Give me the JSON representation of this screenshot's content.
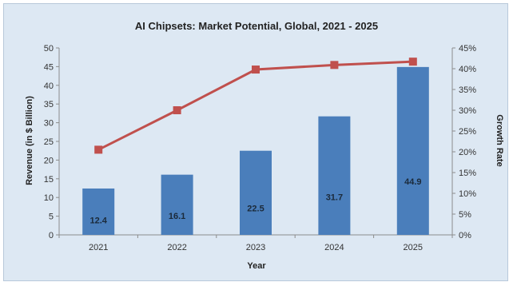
{
  "chart_data": {
    "type": "bar+line",
    "title": "AI Chipsets: Market Potential, Global, 2021 - 2025",
    "xlabel": "Year",
    "ylabel_left": "Revenue (in $ Billion)",
    "ylabel_right": "Growth Rate",
    "categories": [
      "2021",
      "2022",
      "2023",
      "2024",
      "2025"
    ],
    "bar_series": {
      "color": "#4a7ebb",
      "values": [
        12.4,
        16.1,
        22.5,
        31.7,
        44.9
      ],
      "labels": [
        "12.4",
        "16.1",
        "22.5",
        "31.7",
        "44.9"
      ]
    },
    "line_series": {
      "color": "#c0504d",
      "values": [
        20.5,
        30.0,
        39.8,
        40.9,
        41.7
      ]
    },
    "ylim_left": [
      0,
      50
    ],
    "yticks_left": [
      "0",
      "5",
      "10",
      "15",
      "20",
      "25",
      "30",
      "35",
      "40",
      "45",
      "50"
    ],
    "ylim_right": [
      0,
      45
    ],
    "yticks_right": [
      "0%",
      "5%",
      "10%",
      "15%",
      "20%",
      "25%",
      "30%",
      "35%",
      "40%",
      "45%"
    ],
    "grid": false,
    "legend": "none"
  }
}
